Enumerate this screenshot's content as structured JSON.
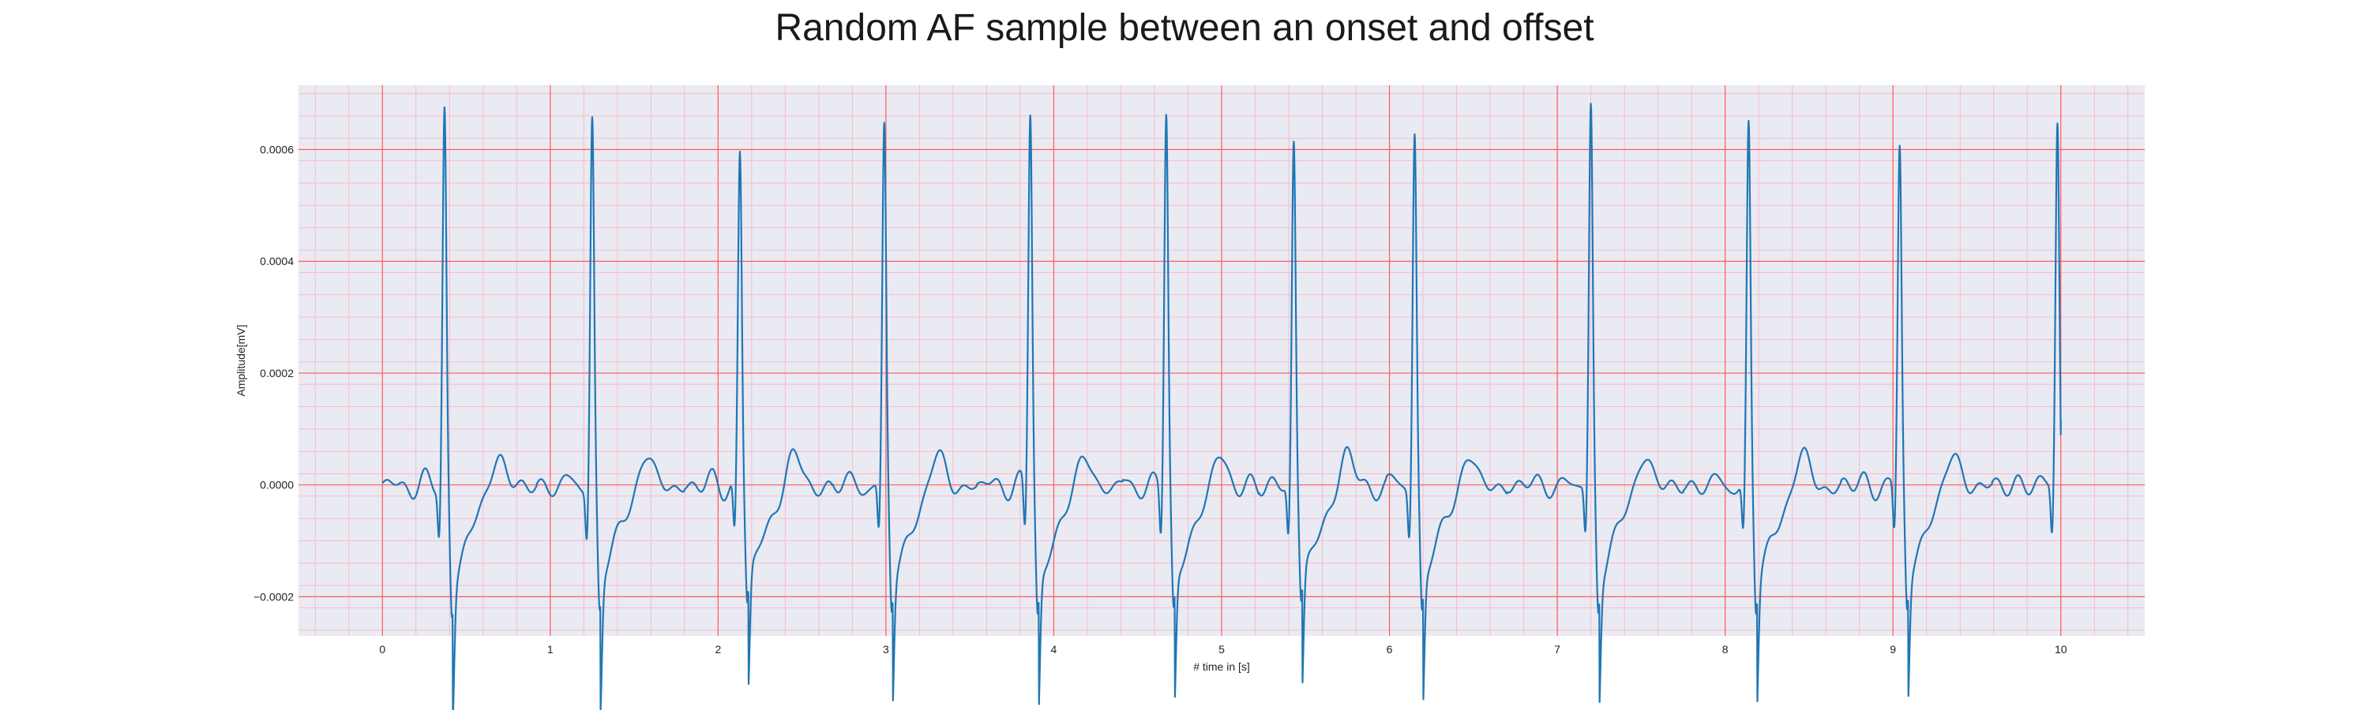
{
  "chart_data": {
    "type": "line",
    "title": "Random AF sample between an onset and offset",
    "xlabel": "# time in [s]",
    "ylabel": "Amplitude[mV]",
    "xlim": [
      -0.5,
      10.5
    ],
    "ylim": [
      -0.00027,
      0.000715
    ],
    "xticks": [
      0,
      1,
      2,
      3,
      4,
      5,
      6,
      7,
      8,
      9,
      10
    ],
    "xtick_labels": [
      "0",
      "1",
      "2",
      "3",
      "4",
      "5",
      "6",
      "7",
      "8",
      "9",
      "10"
    ],
    "yticks": [
      -0.0002,
      0.0,
      0.0002,
      0.0004,
      0.0006
    ],
    "ytick_labels": [
      "−0.0002",
      "0.0000",
      "0.0002",
      "0.0004",
      "0.0006"
    ],
    "grid": true,
    "minor_grid": true,
    "background": "#eaeaf2",
    "major_grid_color": "#ff5a5a",
    "minor_grid_color": "#f6b8c8",
    "line_color": "#1f77b4",
    "series": [
      {
        "beats": [
          {
            "t": 0.37,
            "peak": 0.00067,
            "trough": -0.00022
          },
          {
            "t": 1.25,
            "peak": 0.00066,
            "trough": -0.00022
          },
          {
            "t": 2.13,
            "peak": 0.000595,
            "trough": -0.000205
          },
          {
            "t": 2.99,
            "peak": 0.000635,
            "trough": -0.000215
          },
          {
            "t": 3.86,
            "peak": 0.00067,
            "trough": -0.000225
          },
          {
            "t": 4.67,
            "peak": 0.00067,
            "trough": -0.00022
          },
          {
            "t": 5.43,
            "peak": 0.000615,
            "trough": -0.000205
          },
          {
            "t": 6.15,
            "peak": 0.000635,
            "trough": -0.00022
          },
          {
            "t": 7.2,
            "peak": 0.000675,
            "trough": -0.000215
          },
          {
            "t": 8.14,
            "peak": 0.00064,
            "trough": -0.000215
          },
          {
            "t": 9.04,
            "peak": 0.0006,
            "trough": -0.00021
          },
          {
            "t": 9.98,
            "peak": 0.000655,
            "trough": -0.000195
          }
        ],
        "t_start": 0.0,
        "t_end": 10.0,
        "end_value": 0.000115
      }
    ]
  }
}
